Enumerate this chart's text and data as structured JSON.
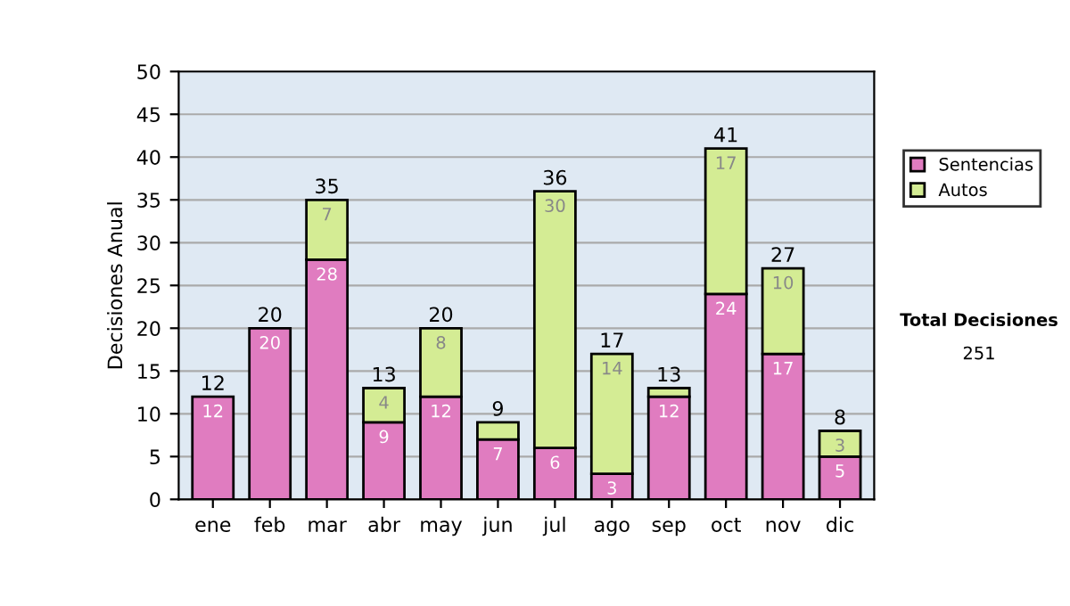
{
  "chart_data": {
    "type": "bar",
    "stacked": true,
    "ylabel": "Decisiones Anual",
    "categories": [
      "ene",
      "feb",
      "mar",
      "abr",
      "may",
      "jun",
      "jul",
      "ago",
      "sep",
      "oct",
      "nov",
      "dic"
    ],
    "series": [
      {
        "name": "Sentencias",
        "color": "#e07cc0",
        "values": [
          12,
          20,
          28,
          9,
          12,
          7,
          6,
          3,
          12,
          24,
          17,
          5
        ],
        "value_labels": [
          "12",
          "20",
          "28",
          "9",
          "12",
          "7",
          "6",
          "3",
          "12",
          "24",
          "17",
          "5"
        ]
      },
      {
        "name": "Autos",
        "color": "#d4ec94",
        "values": [
          null,
          null,
          7,
          4,
          8,
          2,
          30,
          14,
          1,
          17,
          10,
          3
        ],
        "value_labels": [
          null,
          null,
          "7",
          "4",
          "8",
          null,
          "30",
          "14",
          null,
          "17",
          "10",
          "3"
        ]
      }
    ],
    "totals": [
      "12",
      "20",
      "35",
      "13",
      "20",
      "9",
      "36",
      "17",
      "13",
      "41",
      "27",
      "8"
    ],
    "ylim": [
      0,
      50
    ],
    "yticks": [
      0,
      5,
      10,
      15,
      20,
      25,
      30,
      35,
      40,
      45,
      50
    ],
    "grid": "y",
    "legend": "right",
    "annotations": [
      "Total Decisiones",
      "251"
    ]
  }
}
